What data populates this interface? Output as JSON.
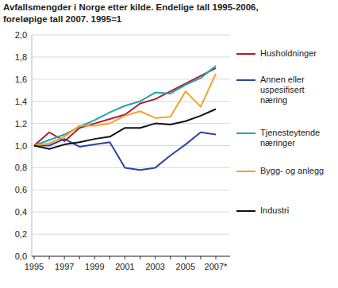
{
  "chart_data": {
    "type": "line",
    "title": [
      "Avfallsmengder i Norge etter kilde. Endelige tall 1995-2006,",
      "foreløpige tall 2007. 1995=1"
    ],
    "categories": [
      "1995",
      null,
      "1997",
      null,
      "1999",
      null,
      "2001",
      null,
      "2003",
      null,
      "2005",
      null,
      "2007*"
    ],
    "series": [
      {
        "name": "Husholdninger",
        "color": "#b01c2e",
        "values": [
          1.0,
          1.12,
          1.04,
          1.16,
          1.2,
          1.24,
          1.28,
          1.38,
          1.42,
          1.49,
          1.56,
          1.63,
          1.7
        ]
      },
      {
        "name": "Annen eller uspesifisert næring",
        "color": "#2a44a0",
        "values": [
          1.0,
          1.0,
          1.06,
          0.99,
          1.01,
          1.03,
          0.8,
          0.78,
          0.8,
          0.91,
          1.01,
          1.12,
          1.1
        ]
      },
      {
        "name": "Tjenesteytende næringer",
        "color": "#1fa6aa",
        "values": [
          1.0,
          1.05,
          1.1,
          1.17,
          1.23,
          1.3,
          1.36,
          1.4,
          1.48,
          1.47,
          1.55,
          1.61,
          1.72
        ]
      },
      {
        "name": "Bygg- og anlegg",
        "color": "#f5a030",
        "values": [
          1.0,
          1.02,
          1.08,
          1.18,
          1.18,
          1.2,
          1.27,
          1.31,
          1.25,
          1.26,
          1.49,
          1.35,
          1.65
        ]
      },
      {
        "name": "Industri",
        "color": "#111111",
        "values": [
          1.0,
          0.97,
          1.01,
          1.03,
          1.06,
          1.08,
          1.16,
          1.16,
          1.2,
          1.19,
          1.22,
          1.27,
          1.33
        ]
      }
    ],
    "ylim": [
      0,
      2.0
    ],
    "yticks": [
      {
        "value": 0,
        "label": "0,0"
      },
      {
        "value": 0.2,
        "label": "0,2"
      },
      {
        "value": 0.4,
        "label": "0,4"
      },
      {
        "value": 0.6,
        "label": "0,6"
      },
      {
        "value": 0.8,
        "label": "0,8"
      },
      {
        "value": 1.0,
        "label": "1,0"
      },
      {
        "value": 1.2,
        "label": "1,2"
      },
      {
        "value": 1.4,
        "label": "1,4"
      },
      {
        "value": 1.6,
        "label": "1,6"
      },
      {
        "value": 1.8,
        "label": "1,8"
      },
      {
        "value": 2.0,
        "label": "2,0"
      }
    ],
    "grid": true,
    "legend": "right"
  }
}
